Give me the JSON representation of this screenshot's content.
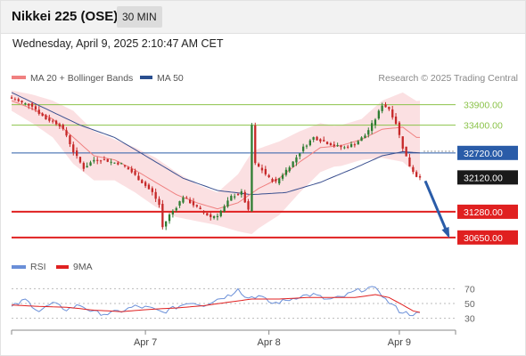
{
  "header": {
    "title": "Nikkei 225 (OSE)",
    "timeframe": "30 MIN"
  },
  "datetime": "Wednesday, April 9, 2025 2:10:47 AM CET",
  "legend": {
    "ma20": "MA 20 + Bollinger Bands",
    "ma50": "MA 50",
    "copyright": "Research © 2025 Trading Central",
    "rsi": "RSI",
    "rsi_ma": "9MA"
  },
  "colors": {
    "bull": "#2e7d32",
    "bear": "#c62828",
    "bands": "#fadadd",
    "ma20": "#f08080",
    "ma50": "#3a4f8f",
    "support": "#e02020",
    "resistance": "#8bc34a",
    "pivot": "#2a5ca8",
    "current": "#1a1a1a",
    "arrow": "#2a5ca8",
    "rsi": "#6a8fd8",
    "rsi_ma": "#e02020"
  },
  "chart_data": {
    "type": "candlestick",
    "price_ylim": [
      30450,
      34350
    ],
    "levels": [
      {
        "label": "33900.00",
        "value": 33900,
        "kind": "resistance"
      },
      {
        "label": "33400.00",
        "value": 33400,
        "kind": "resistance"
      },
      {
        "label": "32720.00",
        "value": 32720,
        "kind": "pivot"
      },
      {
        "label": "32120.00",
        "value": 32120,
        "kind": "current"
      },
      {
        "label": "31280.00",
        "value": 31280,
        "kind": "support"
      },
      {
        "label": "30650.00",
        "value": 30650,
        "kind": "support"
      }
    ],
    "anchors": [
      [
        0,
        34050
      ],
      [
        3,
        33950
      ],
      [
        6,
        33880
      ],
      [
        8,
        33700
      ],
      [
        10,
        33550
      ],
      [
        12,
        33500
      ],
      [
        14,
        33400
      ],
      [
        16,
        33150
      ],
      [
        18,
        32750
      ],
      [
        21,
        32350
      ],
      [
        24,
        32550
      ],
      [
        27,
        32550
      ],
      [
        29,
        32500
      ],
      [
        32,
        32450
      ],
      [
        35,
        32250
      ],
      [
        38,
        32000
      ],
      [
        41,
        31750
      ],
      [
        43,
        31450
      ],
      [
        44,
        30900
      ],
      [
        46,
        31200
      ],
      [
        48,
        31400
      ],
      [
        50,
        31650
      ],
      [
        53,
        31450
      ],
      [
        56,
        31250
      ],
      [
        58,
        31150
      ],
      [
        60,
        31200
      ],
      [
        62,
        31400
      ],
      [
        64,
        31650
      ],
      [
        67,
        31750
      ],
      [
        69,
        31300
      ],
      [
        70,
        33400
      ],
      [
        71,
        32450
      ],
      [
        73,
        32300
      ],
      [
        75,
        32100
      ],
      [
        77,
        32000
      ],
      [
        79,
        32200
      ],
      [
        82,
        32500
      ],
      [
        85,
        32850
      ],
      [
        88,
        33100
      ],
      [
        91,
        33000
      ],
      [
        94,
        32900
      ],
      [
        97,
        32850
      ],
      [
        100,
        32950
      ],
      [
        103,
        33150
      ],
      [
        106,
        33550
      ],
      [
        108,
        33900
      ],
      [
        110,
        33800
      ],
      [
        112,
        33450
      ],
      [
        114,
        32850
      ],
      [
        116,
        32400
      ],
      [
        118,
        32150
      ],
      [
        119,
        32150
      ]
    ],
    "ma20_anchors": [
      [
        0,
        34000
      ],
      [
        6,
        33800
      ],
      [
        12,
        33550
      ],
      [
        18,
        33100
      ],
      [
        24,
        32650
      ],
      [
        30,
        32550
      ],
      [
        36,
        32300
      ],
      [
        42,
        32000
      ],
      [
        48,
        31700
      ],
      [
        54,
        31500
      ],
      [
        60,
        31350
      ],
      [
        66,
        31500
      ],
      [
        72,
        31850
      ],
      [
        78,
        32100
      ],
      [
        84,
        32500
      ],
      [
        90,
        32850
      ],
      [
        96,
        32900
      ],
      [
        102,
        33050
      ],
      [
        108,
        33300
      ],
      [
        114,
        33350
      ],
      [
        118,
        33100
      ]
    ],
    "ma50_anchors": [
      [
        0,
        34200
      ],
      [
        10,
        33800
      ],
      [
        20,
        33400
      ],
      [
        30,
        33100
      ],
      [
        40,
        32600
      ],
      [
        50,
        32100
      ],
      [
        60,
        31800
      ],
      [
        70,
        31700
      ],
      [
        80,
        31750
      ],
      [
        90,
        32000
      ],
      [
        100,
        32350
      ],
      [
        108,
        32650
      ],
      [
        114,
        32750
      ],
      [
        119,
        32720
      ]
    ],
    "band_width_anchors": [
      [
        0,
        250
      ],
      [
        6,
        350
      ],
      [
        12,
        450
      ],
      [
        18,
        650
      ],
      [
        24,
        600
      ],
      [
        30,
        500
      ],
      [
        36,
        550
      ],
      [
        42,
        600
      ],
      [
        48,
        550
      ],
      [
        54,
        450
      ],
      [
        60,
        400
      ],
      [
        66,
        700
      ],
      [
        70,
        1000
      ],
      [
        78,
        900
      ],
      [
        86,
        700
      ],
      [
        94,
        500
      ],
      [
        102,
        500
      ],
      [
        108,
        700
      ],
      [
        114,
        850
      ],
      [
        119,
        900
      ]
    ],
    "forecast_target": 30650,
    "x_ticks": [
      {
        "label": "Apr 7",
        "index": 39
      },
      {
        "label": "Apr 8",
        "index": 75
      },
      {
        "label": "Apr 9",
        "index": 113
      }
    ],
    "rsi": {
      "ylim": [
        20,
        80
      ],
      "levels": [
        70,
        50,
        30
      ],
      "labels": [
        "70",
        "50",
        "30"
      ],
      "anchors": [
        [
          0,
          45
        ],
        [
          4,
          55
        ],
        [
          8,
          40
        ],
        [
          12,
          50
        ],
        [
          16,
          42
        ],
        [
          20,
          48
        ],
        [
          24,
          38
        ],
        [
          28,
          36
        ],
        [
          32,
          40
        ],
        [
          36,
          46
        ],
        [
          40,
          44
        ],
        [
          44,
          38
        ],
        [
          48,
          45
        ],
        [
          52,
          52
        ],
        [
          56,
          48
        ],
        [
          60,
          56
        ],
        [
          64,
          62
        ],
        [
          66,
          72
        ],
        [
          68,
          58
        ],
        [
          72,
          60
        ],
        [
          76,
          50
        ],
        [
          80,
          54
        ],
        [
          84,
          60
        ],
        [
          88,
          62
        ],
        [
          92,
          55
        ],
        [
          96,
          58
        ],
        [
          100,
          66
        ],
        [
          104,
          71
        ],
        [
          107,
          68
        ],
        [
          109,
          55
        ],
        [
          111,
          48
        ],
        [
          113,
          40
        ],
        [
          116,
          36
        ],
        [
          119,
          36
        ]
      ],
      "ma_anchors": [
        [
          0,
          48
        ],
        [
          8,
          46
        ],
        [
          16,
          45
        ],
        [
          24,
          41
        ],
        [
          32,
          39
        ],
        [
          40,
          42
        ],
        [
          48,
          44
        ],
        [
          56,
          47
        ],
        [
          62,
          51
        ],
        [
          70,
          56
        ],
        [
          78,
          56
        ],
        [
          86,
          58
        ],
        [
          94,
          58
        ],
        [
          100,
          58
        ],
        [
          106,
          62
        ],
        [
          110,
          58
        ],
        [
          114,
          48
        ],
        [
          117,
          40
        ],
        [
          119,
          38
        ]
      ]
    }
  }
}
